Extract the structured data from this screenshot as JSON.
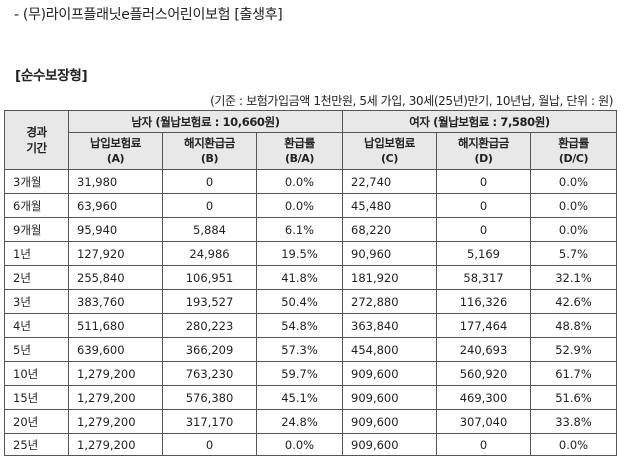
{
  "header": {
    "product_line": "- (무)라이프플래닛e플러스어린이보험 [출생후]",
    "section_title": "[순수보장형]",
    "criteria": "(기준 : 보험가입금액 1천만원, 5세 가입, 30세(25년)만기, 10년납, 월납, 단위 : 원)"
  },
  "table": {
    "period_header_1": "경과",
    "period_header_2": "기간",
    "male_group": "남자 (월납보험료 : 10,660원)",
    "female_group": "여자 (월납보험료 : 7,580원)",
    "columns": [
      {
        "label": "납입보험료",
        "sub": "(A)"
      },
      {
        "label": "해지환급금",
        "sub": "(B)"
      },
      {
        "label": "환급률",
        "sub": "(B/A)"
      },
      {
        "label": "납입보험료",
        "sub": "(C)"
      },
      {
        "label": "해지환급금",
        "sub": "(D)"
      },
      {
        "label": "환급률",
        "sub": "(D/C)"
      }
    ],
    "rows": [
      [
        "3개월",
        "31,980",
        "0",
        "0.0%",
        "22,740",
        "0",
        "0.0%"
      ],
      [
        "6개월",
        "63,960",
        "0",
        "0.0%",
        "45,480",
        "0",
        "0.0%"
      ],
      [
        "9개월",
        "95,940",
        "5,884",
        "6.1%",
        "68,220",
        "0",
        "0.0%"
      ],
      [
        "1년",
        "127,920",
        "24,986",
        "19.5%",
        "90,960",
        "5,169",
        "5.7%"
      ],
      [
        "2년",
        "255,840",
        "106,951",
        "41.8%",
        "181,920",
        "58,317",
        "32.1%"
      ],
      [
        "3년",
        "383,760",
        "193,527",
        "50.4%",
        "272,880",
        "116,326",
        "42.6%"
      ],
      [
        "4년",
        "511,680",
        "280,223",
        "54.8%",
        "363,840",
        "177,464",
        "48.8%"
      ],
      [
        "5년",
        "639,600",
        "366,209",
        "57.3%",
        "454,800",
        "240,693",
        "52.9%"
      ],
      [
        "10년",
        "1,279,200",
        "763,230",
        "59.7%",
        "909,600",
        "560,920",
        "61.7%"
      ],
      [
        "15년",
        "1,279,200",
        "576,380",
        "45.1%",
        "909,600",
        "469,300",
        "51.6%"
      ],
      [
        "20년",
        "1,279,200",
        "317,170",
        "24.8%",
        "909,600",
        "307,040",
        "33.8%"
      ],
      [
        "25년",
        "1,279,200",
        "0",
        "0.0%",
        "909,600",
        "0",
        "0.0%"
      ]
    ]
  }
}
